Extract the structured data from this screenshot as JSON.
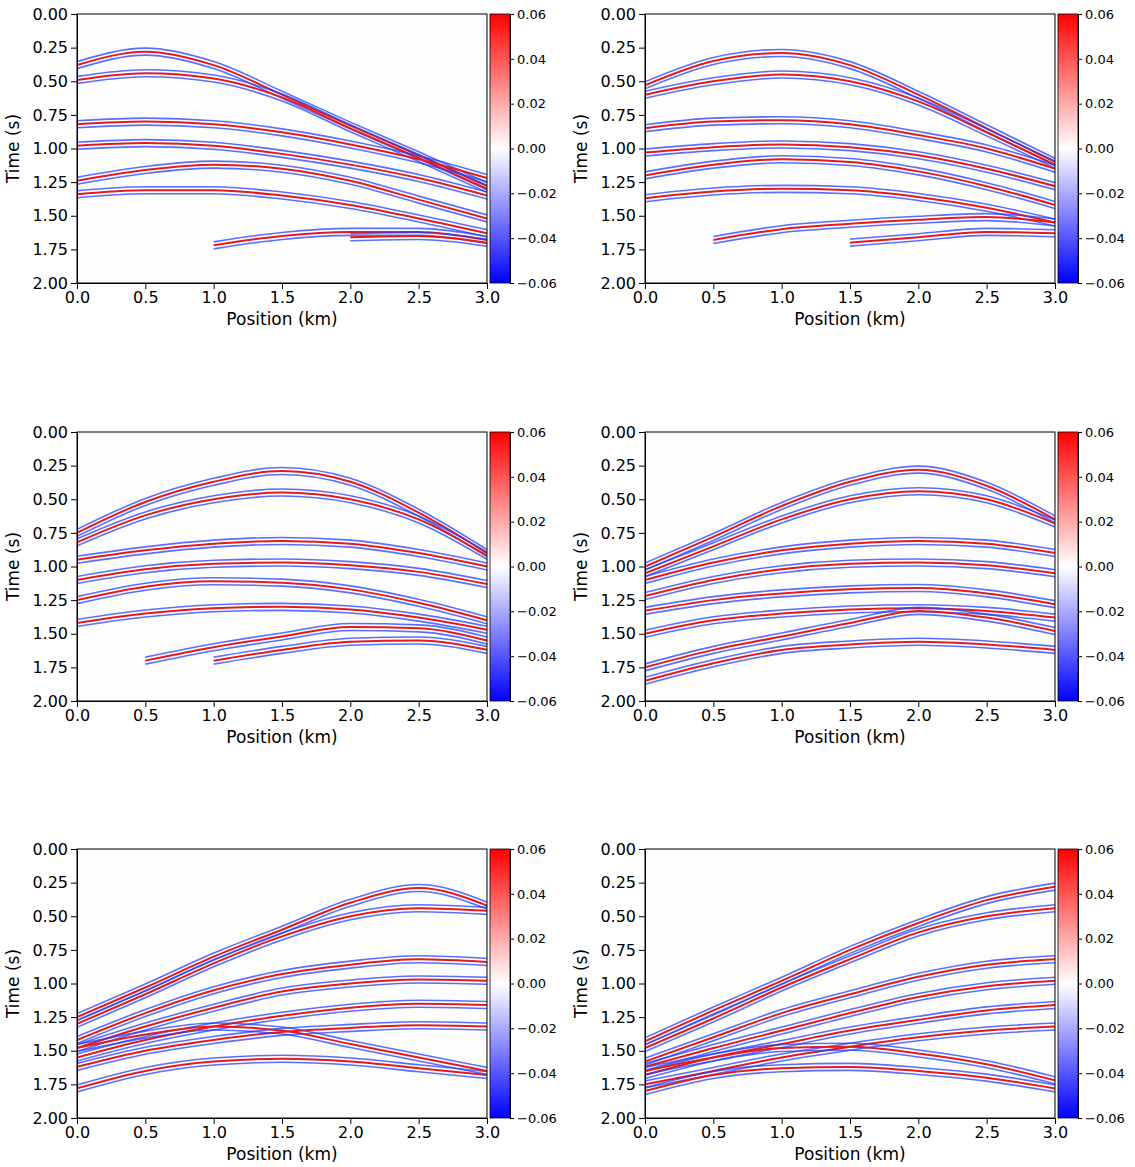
{
  "chart_data": [
    {
      "type": "seismic",
      "xlabel": "Position (km)",
      "ylabel": "Time (s)",
      "color": "#e41a1c",
      "xlim": [
        0,
        3
      ],
      "ylim": [
        0,
        2
      ],
      "xticks": [
        {
          "value": 0,
          "label": "0.0"
        },
        0.5,
        {
          "value": 1,
          "label": "1.0"
        },
        1.5,
        {
          "value": 2,
          "label": "2.0"
        },
        2.5,
        {
          "value": 3,
          "label": "3.0"
        }
      ],
      "yticks": [
        {
          "value": 0,
          "label": "0.00"
        },
        0.25,
        {
          "value": 0.5,
          "label": "0.50"
        },
        0.75,
        {
          "value": 1,
          "label": "1.00"
        },
        1.25,
        {
          "value": 1.5,
          "label": "1.50"
        },
        1.75,
        {
          "value": 2,
          "label": "2.00"
        }
      ],
      "colorbar": {
        "range": [
          -0.06,
          0.06
        ],
        "ticks": [
          0.06,
          0.04,
          0.02,
          {
            "value": 0,
            "label": "0.00"
          },
          {
            "value": -0.02,
            "label": "−0.02"
          },
          {
            "value": -0.04,
            "label": "−0.04"
          },
          {
            "value": -0.06,
            "label": "−0.06"
          }
        ]
      },
      "x": [
        0,
        0.5,
        1,
        1.5,
        2,
        2.5,
        3
      ],
      "series": [
        {
          "values": [
            0.38,
            0.28,
            0.38,
            0.6,
            0.83,
            1.05,
            1.28
          ]
        },
        {
          "values": [
            0.49,
            0.44,
            0.48,
            0.62,
            0.85,
            1.07,
            1.3
          ]
        },
        {
          "values": [
            0.82,
            0.8,
            0.82,
            0.88,
            0.97,
            1.08,
            1.22
          ]
        },
        {
          "values": [
            0.98,
            0.96,
            0.98,
            1.04,
            1.12,
            1.22,
            1.35
          ]
        },
        {
          "values": [
            1.24,
            1.16,
            1.12,
            1.15,
            1.24,
            1.38,
            1.52
          ]
        },
        {
          "values": [
            1.34,
            1.31,
            1.31,
            1.35,
            1.42,
            1.52,
            1.63
          ]
        },
        {
          "values": [
            null,
            null,
            1.72,
            1.65,
            1.62,
            1.62,
            1.68
          ]
        },
        {
          "values": [
            null,
            null,
            null,
            null,
            1.66,
            1.65,
            1.7
          ]
        }
      ]
    },
    {
      "type": "seismic",
      "xlabel": "Position (km)",
      "ylabel": "Time (s)",
      "color": "#e41a1c",
      "xlim": [
        0,
        3
      ],
      "ylim": [
        0,
        2
      ],
      "xticks": [
        {
          "value": 0,
          "label": "0.0"
        },
        0.5,
        {
          "value": 1,
          "label": "1.0"
        },
        1.5,
        {
          "value": 2,
          "label": "2.0"
        },
        2.5,
        {
          "value": 3,
          "label": "3.0"
        }
      ],
      "yticks": [
        {
          "value": 0,
          "label": "0.00"
        },
        0.25,
        {
          "value": 0.5,
          "label": "0.50"
        },
        0.75,
        {
          "value": 1,
          "label": "1.00"
        },
        1.25,
        {
          "value": 1.5,
          "label": "1.50"
        },
        1.75,
        {
          "value": 2,
          "label": "2.00"
        }
      ],
      "colorbar": {
        "range": [
          -0.06,
          0.06
        ],
        "ticks": [
          0.06,
          0.04,
          0.02,
          {
            "value": 0,
            "label": "0.00"
          },
          {
            "value": -0.02,
            "label": "−0.02"
          },
          {
            "value": -0.04,
            "label": "−0.04"
          },
          {
            "value": -0.06,
            "label": "−0.06"
          }
        ]
      },
      "x": [
        0,
        0.5,
        1,
        1.5,
        2,
        2.5,
        3
      ],
      "series": [
        {
          "values": [
            0.53,
            0.35,
            0.29,
            0.38,
            0.6,
            0.85,
            1.1
          ]
        },
        {
          "values": [
            0.6,
            0.5,
            0.45,
            0.5,
            0.65,
            0.88,
            1.12
          ]
        },
        {
          "values": [
            0.85,
            0.8,
            0.79,
            0.82,
            0.9,
            1.0,
            1.15
          ]
        },
        {
          "values": [
            1.03,
            0.99,
            0.97,
            0.99,
            1.05,
            1.15,
            1.28
          ]
        },
        {
          "values": [
            1.2,
            1.12,
            1.08,
            1.1,
            1.17,
            1.28,
            1.42
          ]
        },
        {
          "values": [
            1.37,
            1.32,
            1.3,
            1.31,
            1.36,
            1.44,
            1.55
          ]
        },
        {
          "values": [
            null,
            1.68,
            1.6,
            1.56,
            1.53,
            1.51,
            1.55
          ]
        },
        {
          "values": [
            null,
            null,
            null,
            1.7,
            1.66,
            1.62,
            1.63
          ]
        }
      ]
    },
    {
      "type": "seismic",
      "xlabel": "Position (km)",
      "ylabel": "Time (s)",
      "color": "#e41a1c",
      "xlim": [
        0,
        3
      ],
      "ylim": [
        0,
        2
      ],
      "xticks": [
        {
          "value": 0,
          "label": "0.0"
        },
        0.5,
        {
          "value": 1,
          "label": "1.0"
        },
        1.5,
        {
          "value": 2,
          "label": "2.0"
        },
        2.5,
        {
          "value": 3,
          "label": "3.0"
        }
      ],
      "yticks": [
        {
          "value": 0,
          "label": "0.00"
        },
        0.25,
        {
          "value": 0.5,
          "label": "0.50"
        },
        0.75,
        {
          "value": 1,
          "label": "1.00"
        },
        1.25,
        {
          "value": 1.5,
          "label": "1.50"
        },
        1.75,
        {
          "value": 2,
          "label": "2.00"
        }
      ],
      "colorbar": {
        "range": [
          -0.06,
          0.06
        ],
        "ticks": [
          0.06,
          0.04,
          0.02,
          {
            "value": 0,
            "label": "0.00"
          },
          {
            "value": -0.02,
            "label": "−0.02"
          },
          {
            "value": -0.04,
            "label": "−0.04"
          },
          {
            "value": -0.06,
            "label": "−0.06"
          }
        ]
      },
      "x": [
        0,
        0.5,
        1,
        1.5,
        2,
        2.5,
        3
      ],
      "series": [
        {
          "values": [
            0.75,
            0.52,
            0.37,
            0.29,
            0.37,
            0.6,
            0.9
          ]
        },
        {
          "values": [
            0.82,
            0.62,
            0.5,
            0.45,
            0.5,
            0.65,
            0.92
          ]
        },
        {
          "values": [
            0.95,
            0.88,
            0.83,
            0.81,
            0.83,
            0.9,
            1.0
          ]
        },
        {
          "values": [
            1.1,
            1.02,
            0.98,
            0.97,
            0.99,
            1.04,
            1.13
          ]
        },
        {
          "values": [
            1.25,
            1.15,
            1.11,
            1.12,
            1.17,
            1.27,
            1.4
          ]
        },
        {
          "values": [
            1.42,
            1.35,
            1.31,
            1.3,
            1.32,
            1.38,
            1.47
          ]
        },
        {
          "values": [
            null,
            1.7,
            1.6,
            1.52,
            1.45,
            1.46,
            1.55
          ]
        },
        {
          "values": [
            null,
            null,
            1.7,
            1.62,
            1.56,
            1.55,
            1.62
          ]
        }
      ]
    },
    {
      "type": "seismic",
      "xlabel": "Position (km)",
      "ylabel": "Time (s)",
      "color": "#e41a1c",
      "xlim": [
        0,
        3
      ],
      "ylim": [
        0,
        2
      ],
      "xticks": [
        {
          "value": 0,
          "label": "0.0"
        },
        0.5,
        {
          "value": 1,
          "label": "1.0"
        },
        1.5,
        {
          "value": 2,
          "label": "2.0"
        },
        2.5,
        {
          "value": 3,
          "label": "3.0"
        }
      ],
      "yticks": [
        {
          "value": 0,
          "label": "0.00"
        },
        0.25,
        {
          "value": 0.5,
          "label": "0.50"
        },
        0.75,
        {
          "value": 1,
          "label": "1.00"
        },
        1.25,
        {
          "value": 1.5,
          "label": "1.50"
        },
        1.75,
        {
          "value": 2,
          "label": "2.00"
        }
      ],
      "colorbar": {
        "range": [
          -0.06,
          0.06
        ],
        "ticks": [
          0.06,
          0.04,
          0.02,
          {
            "value": 0,
            "label": "0.00"
          },
          {
            "value": -0.02,
            "label": "−0.02"
          },
          {
            "value": -0.04,
            "label": "−0.04"
          },
          {
            "value": -0.06,
            "label": "−0.06"
          }
        ]
      },
      "x": [
        0,
        0.5,
        1,
        1.5,
        2,
        2.5,
        3
      ],
      "series": [
        {
          "values": [
            1.0,
            0.78,
            0.55,
            0.37,
            0.28,
            0.4,
            0.65
          ]
        },
        {
          "values": [
            1.05,
            0.85,
            0.65,
            0.5,
            0.44,
            0.5,
            0.68
          ]
        },
        {
          "values": [
            1.1,
            0.97,
            0.88,
            0.83,
            0.81,
            0.83,
            0.9
          ]
        },
        {
          "values": [
            1.22,
            1.1,
            1.02,
            0.98,
            0.97,
            0.99,
            1.05
          ]
        },
        {
          "values": [
            1.33,
            1.25,
            1.2,
            1.17,
            1.16,
            1.2,
            1.28
          ]
        },
        {
          "values": [
            1.5,
            1.4,
            1.35,
            1.32,
            1.31,
            1.33,
            1.38
          ]
        },
        {
          "values": [
            1.75,
            1.62,
            1.52,
            1.42,
            1.33,
            1.38,
            1.48
          ]
        },
        {
          "values": [
            1.85,
            1.72,
            1.62,
            1.58,
            1.56,
            1.58,
            1.62
          ]
        }
      ]
    },
    {
      "type": "seismic",
      "xlabel": "Position (km)",
      "ylabel": "Time (s)",
      "color": "#e41a1c",
      "xlim": [
        0,
        3
      ],
      "ylim": [
        0,
        2
      ],
      "xticks": [
        {
          "value": 0,
          "label": "0.0"
        },
        0.5,
        {
          "value": 1,
          "label": "1.0"
        },
        1.5,
        {
          "value": 2,
          "label": "2.0"
        },
        2.5,
        {
          "value": 3,
          "label": "3.0"
        }
      ],
      "yticks": [
        {
          "value": 0,
          "label": "0.00"
        },
        0.25,
        {
          "value": 0.5,
          "label": "0.50"
        },
        0.75,
        {
          "value": 1,
          "label": "1.00"
        },
        1.25,
        {
          "value": 1.5,
          "label": "1.50"
        },
        1.75,
        {
          "value": 2,
          "label": "2.00"
        }
      ],
      "colorbar": {
        "range": [
          -0.06,
          0.06
        ],
        "ticks": [
          0.06,
          0.04,
          0.02,
          {
            "value": 0,
            "label": "0.00"
          },
          {
            "value": -0.02,
            "label": "−0.02"
          },
          {
            "value": -0.04,
            "label": "−0.04"
          },
          {
            "value": -0.06,
            "label": "−0.06"
          }
        ]
      },
      "x": [
        0,
        0.5,
        1,
        1.5,
        2,
        2.5,
        3
      ],
      "series": [
        {
          "values": [
            1.25,
            1.03,
            0.8,
            0.6,
            0.4,
            0.29,
            0.42
          ]
        },
        {
          "values": [
            1.3,
            1.08,
            0.85,
            0.65,
            0.5,
            0.44,
            0.46
          ]
        },
        {
          "values": [
            1.42,
            1.22,
            1.05,
            0.93,
            0.86,
            0.82,
            0.84
          ]
        },
        {
          "values": [
            1.48,
            1.32,
            1.18,
            1.06,
            1.0,
            0.97,
            0.98
          ]
        },
        {
          "values": [
            1.55,
            1.42,
            1.32,
            1.24,
            1.18,
            1.15,
            1.16
          ]
        },
        {
          "values": [
            1.62,
            1.5,
            1.42,
            1.36,
            1.33,
            1.31,
            1.32
          ]
        },
        {
          "values": [
            1.78,
            1.65,
            1.58,
            1.56,
            1.58,
            1.63,
            1.68
          ]
        },
        {
          "values": [
            1.48,
            1.38,
            1.32,
            1.35,
            1.45,
            1.55,
            1.65
          ]
        }
      ]
    },
    {
      "type": "seismic",
      "xlabel": "Position (km)",
      "ylabel": "Time (s)",
      "color": "#e41a1c",
      "xlim": [
        0,
        3
      ],
      "ylim": [
        0,
        2
      ],
      "xticks": [
        {
          "value": 0,
          "label": "0.0"
        },
        0.5,
        {
          "value": 1,
          "label": "1.0"
        },
        1.5,
        {
          "value": 2,
          "label": "2.0"
        },
        2.5,
        {
          "value": 3,
          "label": "3.0"
        }
      ],
      "yticks": [
        {
          "value": 0,
          "label": "0.00"
        },
        0.25,
        {
          "value": 0.5,
          "label": "0.50"
        },
        0.75,
        {
          "value": 1,
          "label": "1.00"
        },
        1.25,
        {
          "value": 1.5,
          "label": "1.50"
        },
        1.75,
        {
          "value": 2,
          "label": "2.00"
        }
      ],
      "colorbar": {
        "range": [
          -0.06,
          0.06
        ],
        "ticks": [
          0.06,
          0.04,
          0.02,
          {
            "value": 0,
            "label": "0.00"
          },
          {
            "value": -0.02,
            "label": "−0.02"
          },
          {
            "value": -0.04,
            "label": "−0.04"
          },
          {
            "value": -0.06,
            "label": "−0.06"
          }
        ]
      },
      "x": [
        0,
        0.5,
        1,
        1.5,
        2,
        2.5,
        3
      ],
      "series": [
        {
          "values": [
            1.43,
            1.2,
            0.98,
            0.75,
            0.55,
            0.38,
            0.28
          ]
        },
        {
          "values": [
            1.48,
            1.26,
            1.03,
            0.82,
            0.62,
            0.5,
            0.44
          ]
        },
        {
          "values": [
            1.58,
            1.4,
            1.22,
            1.08,
            0.95,
            0.86,
            0.82
          ]
        },
        {
          "values": [
            1.62,
            1.48,
            1.35,
            1.22,
            1.1,
            1.02,
            0.98
          ]
        },
        {
          "values": [
            1.68,
            1.55,
            1.45,
            1.35,
            1.27,
            1.2,
            1.16
          ]
        },
        {
          "values": [
            1.75,
            1.65,
            1.55,
            1.47,
            1.4,
            1.35,
            1.32
          ]
        },
        {
          "values": [
            1.8,
            1.68,
            1.63,
            1.62,
            1.65,
            1.7,
            1.78
          ]
        },
        {
          "values": [
            1.65,
            1.55,
            1.48,
            1.47,
            1.52,
            1.6,
            1.72
          ]
        }
      ]
    }
  ]
}
